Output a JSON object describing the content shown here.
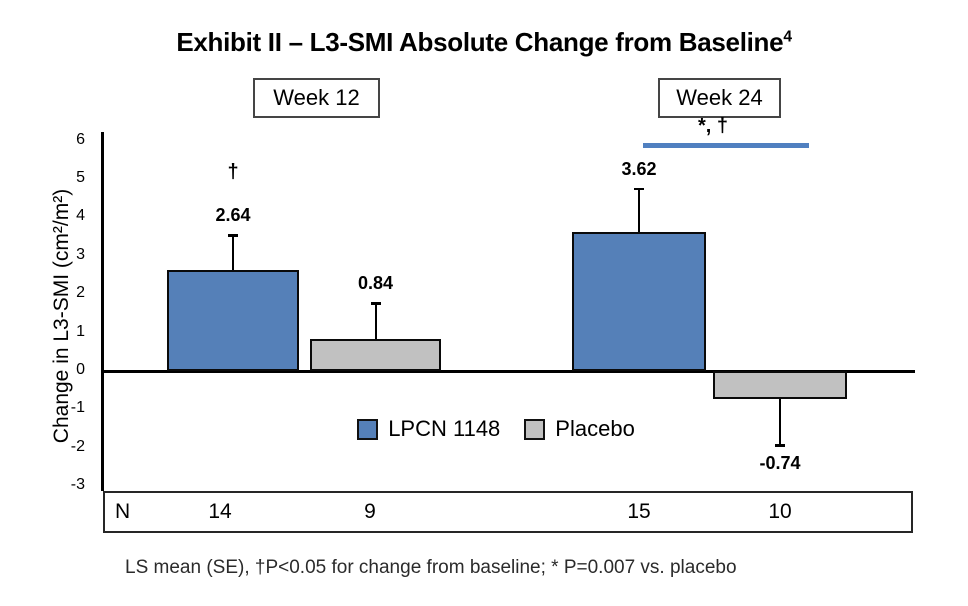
{
  "title": {
    "text": "Exhibit II – L3-SMI Absolute Change from Baseline",
    "superscript": "4"
  },
  "group_labels": [
    {
      "label": "Week 12"
    },
    {
      "label": "Week 24"
    }
  ],
  "annotation": {
    "text": "*, †",
    "line_color": "#5080C0"
  },
  "y_axis": {
    "title": "Change in L3-SMI (cm²/m²)",
    "ticks": [
      6,
      5,
      4,
      3,
      2,
      1,
      0,
      -1,
      -2,
      -3
    ]
  },
  "legend": {
    "items": [
      {
        "label": "LPCN 1148",
        "color": "#5580B8"
      },
      {
        "label": "Placebo",
        "color": "#C1C1C1"
      }
    ]
  },
  "n_row": {
    "header": "N",
    "values": [
      "14",
      "9",
      "15",
      "10"
    ]
  },
  "footnote": "LS mean (SE), †P<0.05 for change from baseline; * P=0.007 vs. placebo",
  "chart_data": {
    "type": "bar",
    "title": "Exhibit II – L3-SMI Absolute Change from Baseline⁴",
    "categories": [
      "Week 12",
      "Week 24"
    ],
    "series": [
      {
        "name": "LPCN 1148",
        "color": "#5580B8",
        "values": [
          2.64,
          3.62
        ],
        "se": [
          0.9,
          1.13
        ],
        "n": [
          14,
          15
        ],
        "markers": [
          "†",
          "*, †"
        ]
      },
      {
        "name": "Placebo",
        "color": "#C1C1C1",
        "values": [
          0.84,
          -0.74
        ],
        "se": [
          0.93,
          1.2
        ],
        "n": [
          9,
          10
        ],
        "markers": [
          "",
          ""
        ]
      }
    ],
    "xlabel": "",
    "ylabel": "Change in L3-SMI (cm²/m²)",
    "ylim": [
      -3,
      6
    ],
    "grid": false,
    "legend_position": "inside-bottom-center",
    "footnote": "LS mean (SE), †P<0.05 for change from baseline; * P=0.007 vs. placebo"
  }
}
